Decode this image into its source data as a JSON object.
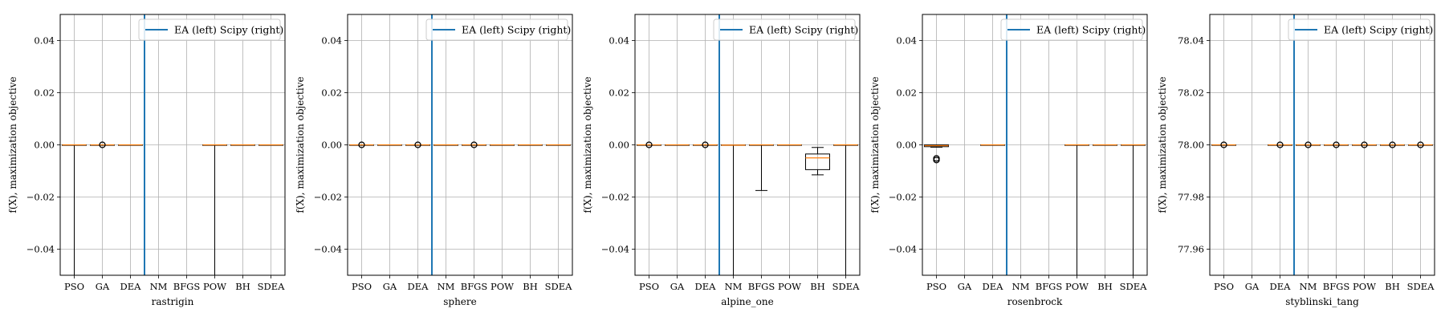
{
  "chart_data": [
    {
      "type": "box",
      "xlabel": "rastrigin",
      "ylabel": "f(X), maximization objective",
      "categories": [
        "PSO",
        "GA",
        "DEA",
        "NM",
        "BFGS",
        "POW",
        "BH",
        "SDEA"
      ],
      "ylim": [
        -0.05,
        0.05
      ],
      "yticks": [
        -0.04,
        -0.02,
        0.0,
        0.02,
        0.04
      ],
      "ytick_labels": [
        "−0.04",
        "−0.02",
        "0.00",
        "0.02",
        "0.04"
      ],
      "legend": "EA (left) Scipy (right)",
      "legend_position": "top-right",
      "grid": true,
      "divider_after": "DEA",
      "boxes": [
        {
          "cat": "PSO",
          "q1": 0,
          "med": 0,
          "q3": 0,
          "wlo": -0.06,
          "whi": 0,
          "fliers": []
        },
        {
          "cat": "GA",
          "q1": 0,
          "med": 0,
          "q3": 0,
          "wlo": 0,
          "whi": 0,
          "fliers": [
            0
          ]
        },
        {
          "cat": "DEA",
          "q1": 0,
          "med": 0,
          "q3": 0,
          "wlo": 0,
          "whi": 0,
          "fliers": []
        },
        {
          "cat": "POW",
          "q1": 0,
          "med": 0,
          "q3": 0,
          "wlo": -0.06,
          "whi": 0,
          "fliers": []
        },
        {
          "cat": "BH",
          "q1": 0,
          "med": 0,
          "q3": 0,
          "wlo": 0,
          "whi": 0,
          "fliers": []
        },
        {
          "cat": "SDEA",
          "q1": 0,
          "med": 0,
          "q3": 0,
          "wlo": 0,
          "whi": 0,
          "fliers": []
        }
      ]
    },
    {
      "type": "box",
      "xlabel": "sphere",
      "ylabel": "f(X), maximization objective",
      "categories": [
        "PSO",
        "GA",
        "DEA",
        "NM",
        "BFGS",
        "POW",
        "BH",
        "SDEA"
      ],
      "ylim": [
        -0.05,
        0.05
      ],
      "yticks": [
        -0.04,
        -0.02,
        0.0,
        0.02,
        0.04
      ],
      "ytick_labels": [
        "−0.04",
        "−0.02",
        "0.00",
        "0.02",
        "0.04"
      ],
      "legend": "EA (left) Scipy (right)",
      "legend_position": "top-right",
      "grid": true,
      "divider_after": "DEA",
      "boxes": [
        {
          "cat": "PSO",
          "q1": 0,
          "med": 0,
          "q3": 0,
          "wlo": 0,
          "whi": 0,
          "fliers": [
            0
          ]
        },
        {
          "cat": "GA",
          "q1": 0,
          "med": 0,
          "q3": 0,
          "wlo": 0,
          "whi": 0,
          "fliers": []
        },
        {
          "cat": "DEA",
          "q1": 0,
          "med": 0,
          "q3": 0,
          "wlo": 0,
          "whi": 0,
          "fliers": [
            0
          ]
        },
        {
          "cat": "NM",
          "q1": 0,
          "med": 0,
          "q3": 0,
          "wlo": 0,
          "whi": 0,
          "fliers": []
        },
        {
          "cat": "BFGS",
          "q1": 0,
          "med": 0,
          "q3": 0,
          "wlo": 0,
          "whi": 0,
          "fliers": [
            0
          ]
        },
        {
          "cat": "POW",
          "q1": 0,
          "med": 0,
          "q3": 0,
          "wlo": 0,
          "whi": 0,
          "fliers": []
        },
        {
          "cat": "BH",
          "q1": 0,
          "med": 0,
          "q3": 0,
          "wlo": 0,
          "whi": 0,
          "fliers": []
        },
        {
          "cat": "SDEA",
          "q1": 0,
          "med": 0,
          "q3": 0,
          "wlo": 0,
          "whi": 0,
          "fliers": []
        }
      ]
    },
    {
      "type": "box",
      "xlabel": "alpine_one",
      "ylabel": "f(X), maximization objective",
      "categories": [
        "PSO",
        "GA",
        "DEA",
        "NM",
        "BFGS",
        "POW",
        "BH",
        "SDEA"
      ],
      "ylim": [
        -0.05,
        0.05
      ],
      "yticks": [
        -0.04,
        -0.02,
        0.0,
        0.02,
        0.04
      ],
      "ytick_labels": [
        "−0.04",
        "−0.02",
        "0.00",
        "0.02",
        "0.04"
      ],
      "legend": "EA (left) Scipy (right)",
      "legend_position": "top-right",
      "grid": true,
      "divider_after": "DEA",
      "boxes": [
        {
          "cat": "PSO",
          "q1": 0,
          "med": 0,
          "q3": 0,
          "wlo": 0,
          "whi": 0,
          "fliers": [
            0
          ]
        },
        {
          "cat": "GA",
          "q1": 0,
          "med": 0,
          "q3": 0,
          "wlo": 0,
          "whi": 0,
          "fliers": []
        },
        {
          "cat": "DEA",
          "q1": 0,
          "med": 0,
          "q3": 0,
          "wlo": 0,
          "whi": 0,
          "fliers": [
            0
          ]
        },
        {
          "cat": "NM",
          "q1": -0.0002,
          "med": -0.0001,
          "q3": 0,
          "wlo": -0.06,
          "whi": 0,
          "fliers": []
        },
        {
          "cat": "BFGS",
          "q1": 0,
          "med": 0,
          "q3": 0,
          "wlo": -0.0175,
          "whi": 0,
          "fliers": []
        },
        {
          "cat": "POW",
          "q1": 0,
          "med": 0,
          "q3": 0,
          "wlo": 0,
          "whi": 0,
          "fliers": []
        },
        {
          "cat": "BH",
          "q1": -0.0095,
          "med": -0.005,
          "q3": -0.0035,
          "wlo": -0.0115,
          "whi": -0.001,
          "fliers": []
        },
        {
          "cat": "SDEA",
          "q1": 0,
          "med": 0,
          "q3": 0,
          "wlo": -0.06,
          "whi": 0,
          "fliers": []
        }
      ]
    },
    {
      "type": "box",
      "xlabel": "rosenbrock",
      "ylabel": "f(X), maximization objective",
      "categories": [
        "PSO",
        "GA",
        "DEA",
        "NM",
        "BFGS",
        "POW",
        "BH",
        "SDEA"
      ],
      "ylim": [
        -0.05,
        0.05
      ],
      "yticks": [
        -0.04,
        -0.02,
        0.0,
        0.02,
        0.04
      ],
      "ytick_labels": [
        "−0.04",
        "−0.02",
        "0.00",
        "0.02",
        "0.04"
      ],
      "legend": "EA (left) Scipy (right)",
      "legend_position": "top-right",
      "grid": true,
      "divider_after": "DEA",
      "boxes": [
        {
          "cat": "PSO",
          "q1": -0.0007,
          "med": -0.0003,
          "q3": 0,
          "wlo": -0.0009,
          "whi": 0,
          "fliers": [
            -0.0052,
            -0.0058
          ]
        },
        {
          "cat": "DEA",
          "q1": 0,
          "med": 0,
          "q3": 0,
          "wlo": 0,
          "whi": 0,
          "fliers": []
        },
        {
          "cat": "POW",
          "q1": 0,
          "med": 0,
          "q3": 0,
          "wlo": -0.06,
          "whi": 0,
          "fliers": []
        },
        {
          "cat": "BH",
          "q1": 0,
          "med": 0,
          "q3": 0,
          "wlo": 0,
          "whi": 0,
          "fliers": []
        },
        {
          "cat": "SDEA",
          "q1": 0,
          "med": 0,
          "q3": 0,
          "wlo": -0.06,
          "whi": 0,
          "fliers": []
        }
      ]
    },
    {
      "type": "box",
      "xlabel": "styblinski_tang",
      "ylabel": "f(X), maximization objective",
      "categories": [
        "PSO",
        "GA",
        "DEA",
        "NM",
        "BFGS",
        "POW",
        "BH",
        "SDEA"
      ],
      "ylim": [
        77.95,
        78.05
      ],
      "yticks": [
        77.96,
        77.98,
        78.0,
        78.02,
        78.04
      ],
      "ytick_labels": [
        "77.96",
        "77.98",
        "78.00",
        "78.02",
        "78.04"
      ],
      "legend": "EA (left) Scipy (right)",
      "legend_position": "top-right",
      "grid": true,
      "divider_after": "DEA",
      "boxes": [
        {
          "cat": "PSO",
          "q1": 78.0,
          "med": 78.0,
          "q3": 78.0,
          "wlo": 78.0,
          "whi": 78.0,
          "fliers": [
            78.0
          ]
        },
        {
          "cat": "DEA",
          "q1": 78.0,
          "med": 78.0,
          "q3": 78.0,
          "wlo": 78.0,
          "whi": 78.0,
          "fliers": [
            78.0
          ]
        },
        {
          "cat": "NM",
          "q1": 78.0,
          "med": 78.0,
          "q3": 78.0,
          "wlo": 78.0,
          "whi": 78.0,
          "fliers": [
            78.0
          ]
        },
        {
          "cat": "BFGS",
          "q1": 78.0,
          "med": 78.0,
          "q3": 78.0,
          "wlo": 78.0,
          "whi": 78.0,
          "fliers": [
            78.0
          ]
        },
        {
          "cat": "POW",
          "q1": 78.0,
          "med": 78.0,
          "q3": 78.0,
          "wlo": 78.0,
          "whi": 78.0,
          "fliers": [
            78.0
          ]
        },
        {
          "cat": "BH",
          "q1": 78.0,
          "med": 78.0,
          "q3": 78.0,
          "wlo": 78.0,
          "whi": 78.0,
          "fliers": [
            78.0
          ]
        },
        {
          "cat": "SDEA",
          "q1": 78.0,
          "med": 78.0,
          "q3": 78.0,
          "wlo": 78.0,
          "whi": 78.0,
          "fliers": [
            78.0
          ]
        }
      ]
    }
  ],
  "colors": {
    "divider": "#1f77b4",
    "legend_line": "#1f77b4",
    "median": "#ff7f0e",
    "box": "#000000",
    "grid": "#b0b0b0"
  }
}
